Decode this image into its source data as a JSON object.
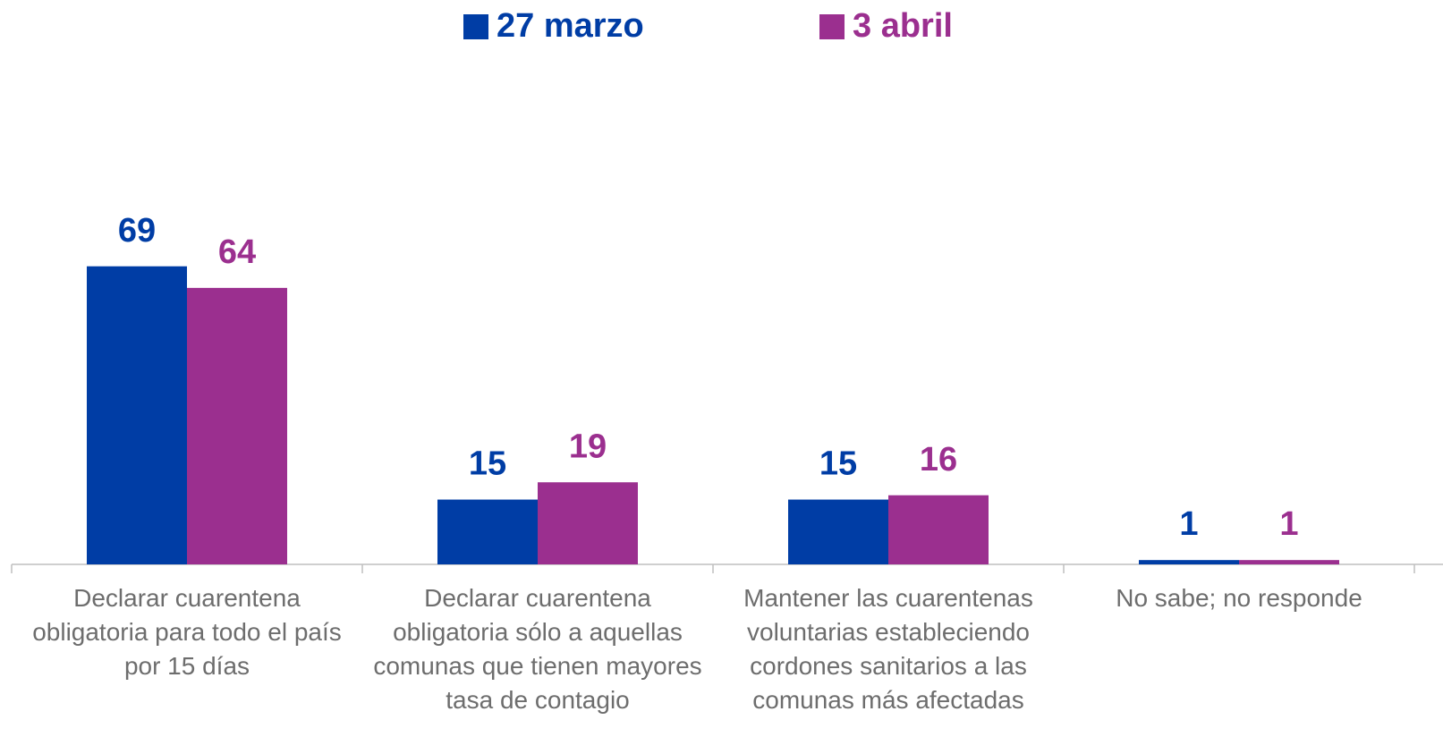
{
  "chart_data": {
    "type": "bar",
    "categories": [
      "Declarar cuarentena obligatoria para todo el país por 15 días",
      "Declarar cuarentena obligatoria sólo a aquellas comunas que tienen mayores tasa de contagio",
      "Mantener las cuarentenas voluntarias estableciendo cordones sanitarios a las comunas más afectadas",
      "No sabe; no responde"
    ],
    "series": [
      {
        "name": "27 marzo",
        "color": "#003da5",
        "values": [
          69,
          15,
          15,
          1
        ]
      },
      {
        "name": "3 abril",
        "color": "#9b2f8f",
        "values": [
          64,
          19,
          16,
          1
        ]
      }
    ],
    "legend": "top"
  }
}
